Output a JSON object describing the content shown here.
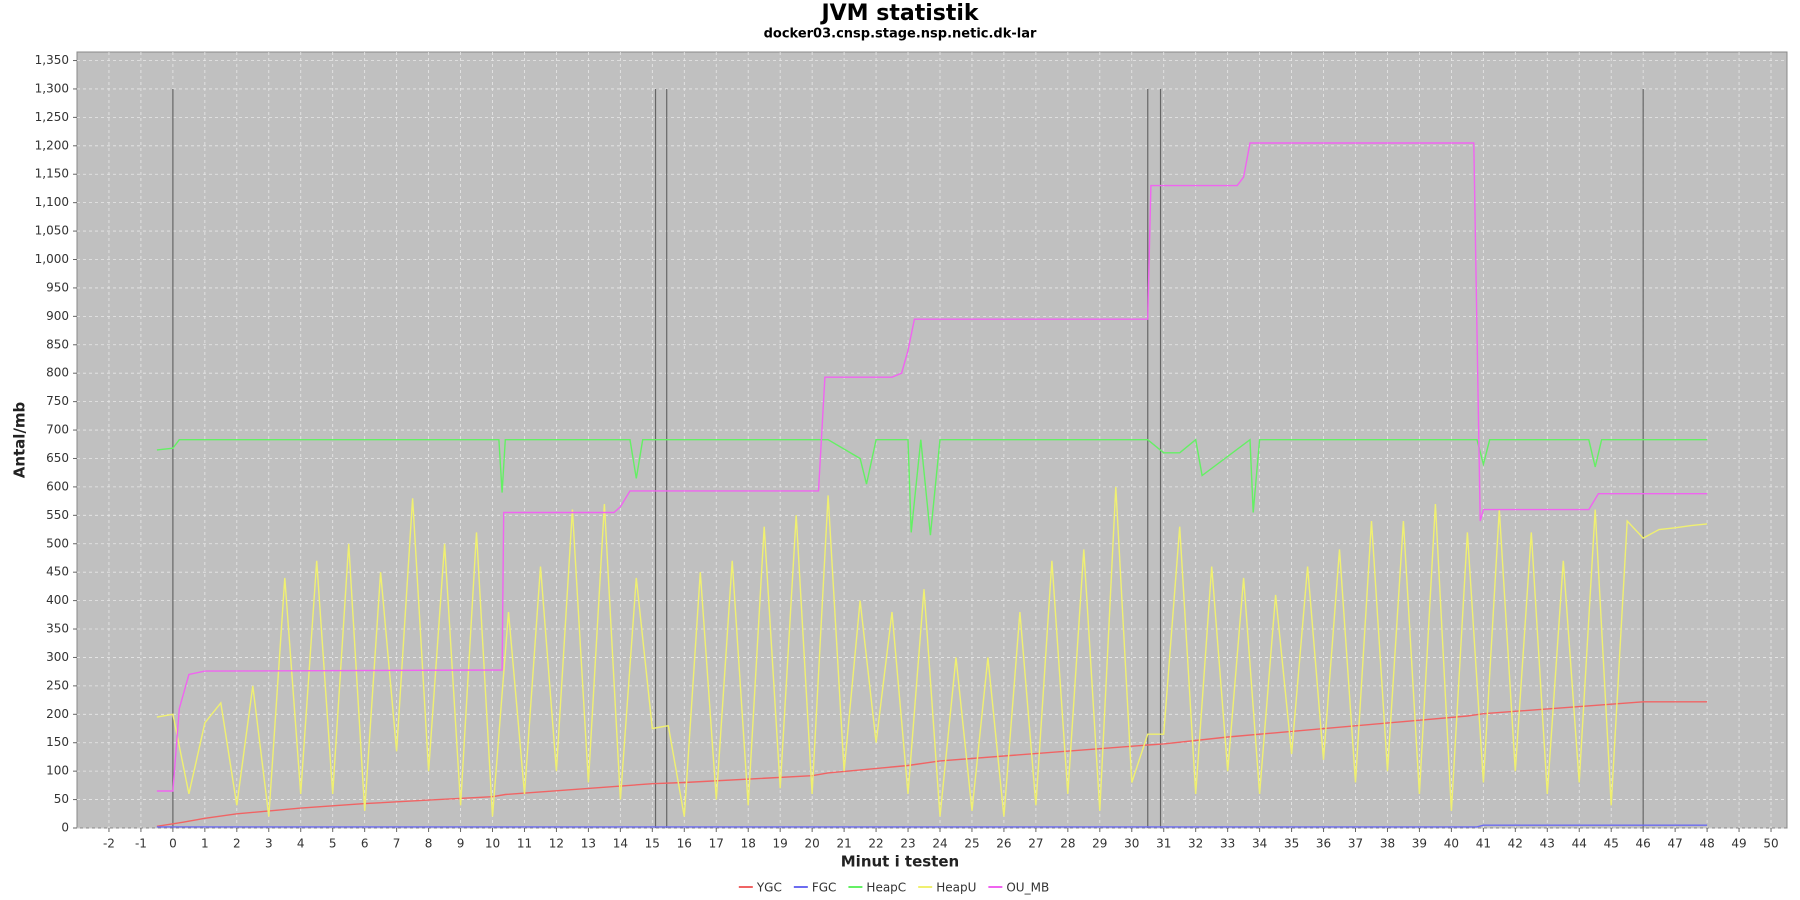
{
  "chart_data": {
    "type": "line",
    "title": "JVM statistik",
    "subtitle": "docker03.cnsp.stage.nsp.netic.dk-lar",
    "x_label": "Minut i testen",
    "y_label": "Antal/mb",
    "xlim": [
      -3,
      50.5
    ],
    "ylim": [
      0,
      1365
    ],
    "xticks": [
      -2,
      -1,
      0,
      1,
      2,
      3,
      4,
      5,
      6,
      7,
      8,
      9,
      10,
      11,
      12,
      13,
      14,
      15,
      16,
      17,
      18,
      19,
      20,
      21,
      22,
      23,
      24,
      25,
      26,
      27,
      28,
      29,
      30,
      31,
      32,
      33,
      34,
      35,
      36,
      37,
      38,
      39,
      40,
      41,
      42,
      43,
      44,
      45,
      46,
      47,
      48,
      49,
      50
    ],
    "yticks": [
      0,
      50,
      100,
      150,
      200,
      250,
      300,
      350,
      400,
      450,
      500,
      550,
      600,
      650,
      700,
      750,
      800,
      850,
      900,
      950,
      {
        "value": 1000,
        "label": "1,000"
      },
      {
        "value": 1050,
        "label": "1,050"
      },
      {
        "value": 1100,
        "label": "1,100"
      },
      {
        "value": 1150,
        "label": "1,150"
      },
      {
        "value": 1200,
        "label": "1,200"
      },
      {
        "value": 1250,
        "label": "1,250"
      },
      {
        "value": 1300,
        "label": "1,300"
      },
      {
        "value": 1350,
        "label": "1,350"
      }
    ],
    "grid": true,
    "legend": "bottom",
    "vlines": [
      0,
      15.1,
      15.45,
      30.5,
      30.9,
      46
    ],
    "vline_range": [
      0,
      1300
    ],
    "series": [
      {
        "name": "YGC",
        "color": "#f06464",
        "x": [
          -0.5,
          0.3,
          1,
          2,
          4,
          6,
          8,
          10,
          10.4,
          15,
          16,
          20,
          20.5,
          23,
          24,
          30.5,
          31,
          33,
          40.5,
          41,
          46,
          48
        ],
        "values": [
          3,
          10,
          17,
          25,
          35,
          43,
          49,
          55,
          59,
          78,
          80,
          92,
          97,
          110,
          118,
          146,
          148,
          160,
          197,
          201,
          222,
          222
        ]
      },
      {
        "name": "FGC",
        "color": "#6c6cf0",
        "x": [
          -0.5,
          40.8,
          41,
          48
        ],
        "values": [
          2,
          2,
          5,
          5
        ]
      },
      {
        "name": "HeapC",
        "color": "#64f064",
        "x": [
          -0.5,
          0,
          0.2,
          10.2,
          10.3,
          10.4,
          14.3,
          14.5,
          14.7,
          20.5,
          21.5,
          21.7,
          22,
          23,
          23.1,
          23.4,
          23.7,
          24,
          30.5,
          31,
          31.5,
          32,
          32.2,
          33.7,
          33.8,
          34,
          40.8,
          41,
          41.2,
          44.3,
          44.5,
          44.7,
          48
        ],
        "values": [
          665,
          668,
          683,
          683,
          590,
          683,
          683,
          615,
          683,
          683,
          650,
          605,
          683,
          683,
          520,
          683,
          515,
          683,
          683,
          660,
          660,
          683,
          620,
          683,
          555,
          683,
          683,
          640,
          683,
          683,
          635,
          683,
          683
        ]
      },
      {
        "name": "HeapU",
        "color": "#f0f070",
        "x": [
          -0.5,
          0,
          0.5,
          1,
          1.5,
          2,
          2.5,
          3,
          3.5,
          4,
          4.5,
          5,
          5.5,
          6,
          6.5,
          7,
          7.5,
          8,
          8.5,
          9,
          9.5,
          10,
          10.5,
          11,
          11.5,
          12,
          12.5,
          13,
          13.5,
          14,
          14.5,
          15,
          15.5,
          16,
          16.5,
          17,
          17.5,
          18,
          18.5,
          19,
          19.5,
          20,
          20.5,
          21,
          21.5,
          22,
          22.5,
          23,
          23.5,
          24,
          24.5,
          25,
          25.5,
          26,
          26.5,
          27,
          27.5,
          28,
          28.5,
          29,
          29.5,
          30,
          30.5,
          31,
          31.5,
          32,
          32.5,
          33,
          33.5,
          34,
          34.5,
          35,
          35.5,
          36,
          36.5,
          37,
          37.5,
          38,
          38.5,
          39,
          39.5,
          40,
          40.5,
          41,
          41.5,
          42,
          42.5,
          43,
          43.5,
          44,
          44.5,
          45,
          45.5,
          46,
          46.5,
          47,
          47.5,
          48
        ],
        "values": [
          195,
          200,
          60,
          185,
          220,
          40,
          250,
          20,
          440,
          60,
          470,
          60,
          500,
          30,
          450,
          135,
          580,
          100,
          500,
          40,
          520,
          20,
          380,
          60,
          460,
          100,
          560,
          80,
          570,
          50,
          440,
          175,
          180,
          20,
          450,
          50,
          470,
          40,
          530,
          70,
          550,
          60,
          585,
          100,
          400,
          150,
          380,
          60,
          420,
          20,
          300,
          30,
          300,
          20,
          380,
          40,
          470,
          60,
          490,
          30,
          600,
          80,
          165,
          165,
          530,
          60,
          460,
          100,
          440,
          60,
          410,
          130,
          460,
          120,
          490,
          80,
          540,
          100,
          540,
          60,
          570,
          30,
          520,
          80,
          560,
          100,
          520,
          60,
          470,
          80,
          560,
          40,
          540,
          510,
          525,
          528,
          532,
          535
        ]
      },
      {
        "name": "OU_MB",
        "color": "#f064f0",
        "x": [
          -0.5,
          0,
          0.2,
          0.5,
          1,
          10.3,
          10.35,
          13.8,
          14,
          14.3,
          20.2,
          20.4,
          22.5,
          22.8,
          23,
          23.2,
          30.5,
          30.6,
          33.3,
          33.5,
          33.7,
          40.7,
          40.9,
          41,
          44.3,
          44.6,
          48
        ],
        "values": [
          65,
          65,
          210,
          270,
          276,
          278,
          555,
          555,
          565,
          593,
          593,
          793,
          793,
          800,
          840,
          895,
          895,
          1130,
          1130,
          1145,
          1205,
          1205,
          540,
          560,
          560,
          588,
          588
        ]
      }
    ]
  }
}
